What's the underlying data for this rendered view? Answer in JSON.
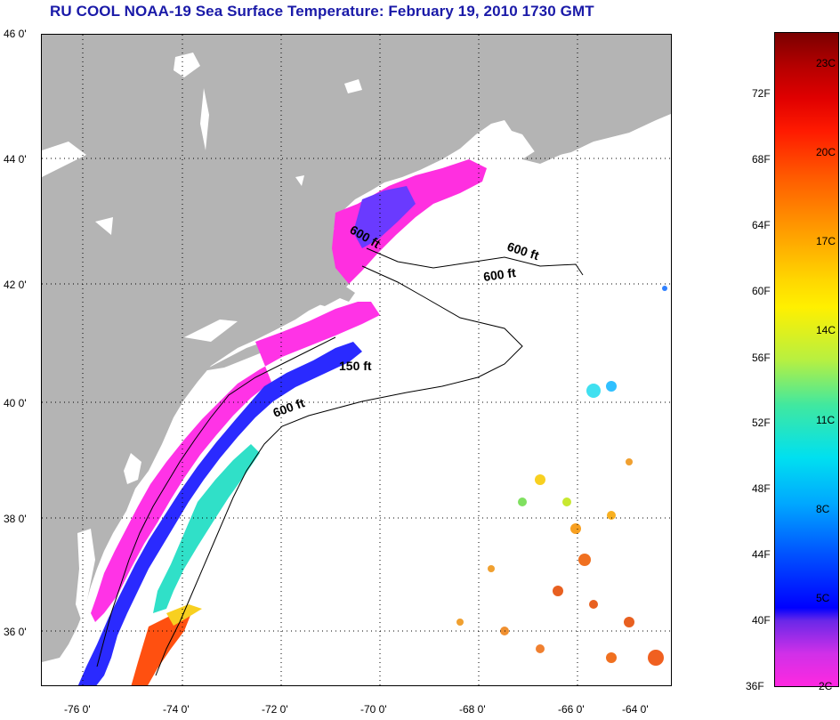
{
  "title": "RU COOL  NOAA-19  Sea Surface Temperature:  February 19, 2010 1730 GMT",
  "latitude_ticks": [
    "46 0'",
    "44 0'",
    "42 0'",
    "40 0'",
    "38 0'",
    "36 0'"
  ],
  "longitude_ticks": [
    "-76 0'",
    "-74 0'",
    "-72 0'",
    "-70 0'",
    "-68 0'",
    "-66 0'",
    "-64 0'"
  ],
  "contour_labels": [
    "600 ft",
    "600 ft",
    "600 ft",
    "150 ft",
    "600 ft"
  ],
  "colorbar": {
    "fahrenheit_ticks": [
      "72F",
      "68F",
      "64F",
      "60F",
      "56F",
      "52F",
      "48F",
      "44F",
      "40F",
      "36F"
    ],
    "celsius_ticks": [
      "23C",
      "20C",
      "17C",
      "14C",
      "11C",
      "8C",
      "5C",
      "2C"
    ]
  },
  "colors": {
    "land": "#b4b4b4",
    "title": "#1a1aa8"
  }
}
